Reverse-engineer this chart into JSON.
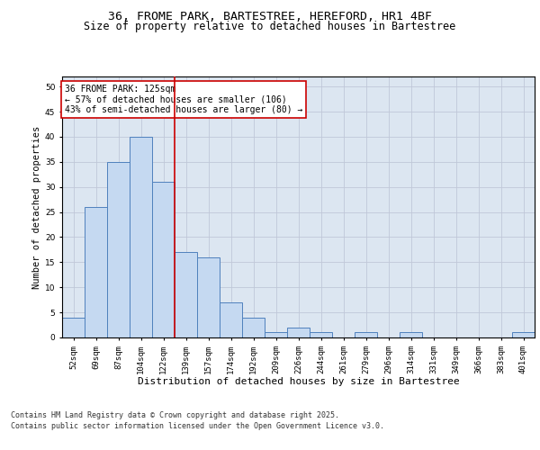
{
  "title_line1": "36, FROME PARK, BARTESTREE, HEREFORD, HR1 4BF",
  "title_line2": "Size of property relative to detached houses in Bartestree",
  "xlabel": "Distribution of detached houses by size in Bartestree",
  "ylabel": "Number of detached properties",
  "categories": [
    "52sqm",
    "69sqm",
    "87sqm",
    "104sqm",
    "122sqm",
    "139sqm",
    "157sqm",
    "174sqm",
    "192sqm",
    "209sqm",
    "226sqm",
    "244sqm",
    "261sqm",
    "279sqm",
    "296sqm",
    "314sqm",
    "331sqm",
    "349sqm",
    "366sqm",
    "383sqm",
    "401sqm"
  ],
  "values": [
    4,
    26,
    35,
    40,
    31,
    17,
    16,
    7,
    4,
    1,
    2,
    1,
    0,
    1,
    0,
    1,
    0,
    0,
    0,
    0,
    1
  ],
  "bar_color": "#c5d9f1",
  "bar_edge_color": "#4f81bd",
  "reference_line_x": 4,
  "reference_line_color": "#cc0000",
  "annotation_text": "36 FROME PARK: 125sqm\n← 57% of detached houses are smaller (106)\n43% of semi-detached houses are larger (80) →",
  "annotation_box_color": "#ffffff",
  "annotation_box_edge_color": "#cc0000",
  "ylim": [
    0,
    52
  ],
  "yticks": [
    0,
    5,
    10,
    15,
    20,
    25,
    30,
    35,
    40,
    45,
    50
  ],
  "grid_color": "#c0c8d8",
  "background_color": "#dce6f1",
  "footer_line1": "Contains HM Land Registry data © Crown copyright and database right 2025.",
  "footer_line2": "Contains public sector information licensed under the Open Government Licence v3.0.",
  "title_fontsize": 9.5,
  "subtitle_fontsize": 8.5,
  "tick_fontsize": 6.5,
  "xlabel_fontsize": 8,
  "ylabel_fontsize": 7.5,
  "footer_fontsize": 6,
  "annotation_fontsize": 7
}
